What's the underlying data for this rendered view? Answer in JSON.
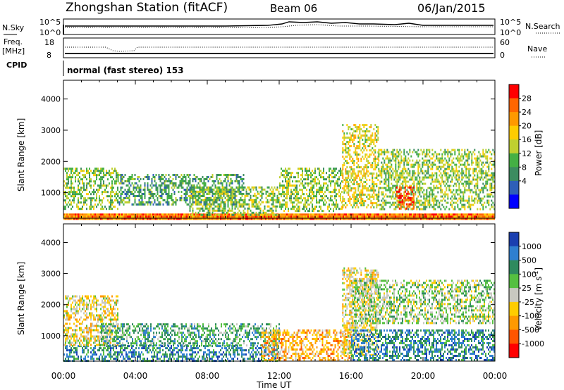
{
  "header": {
    "station": "Zhongshan Station (fitACF)",
    "beam": "Beam 06",
    "date": "06/Jan/2015"
  },
  "header_panels": {
    "nsky_label": "N.Sky",
    "nsky_left_ticks": [
      "10^5",
      "10^0"
    ],
    "nsky_right_ticks": [
      "10^5",
      "10^0"
    ],
    "nsearch_label": "N.Search",
    "freq_label_1": "Freq.",
    "freq_label_2": "[MHz]",
    "freq_ticks": [
      "18",
      "8"
    ],
    "nave_label": "Nave",
    "nave_ticks": [
      "60",
      "0"
    ],
    "cpid_label": "CPID",
    "cpid_text": "normal (fast stereo) 153"
  },
  "chart_data": [
    {
      "type": "heatmap",
      "quantity": "Power",
      "ylabel": "Slant Range [km]",
      "xlabel": "Time UT",
      "x_range_hours": [
        0,
        24
      ],
      "y_range_km": [
        180,
        4600
      ],
      "x_ticks": [
        "00:00",
        "04:00",
        "08:00",
        "12:00",
        "16:00",
        "20:00",
        "00:00"
      ],
      "y_ticks": [
        "1000",
        "2000",
        "3000",
        "4000"
      ],
      "colorbar_label": "Power [dB]",
      "colorbar_ticks": [
        "28",
        "24",
        "20",
        "16",
        "12",
        "8",
        "4"
      ],
      "colorbar_colors": [
        "#ff0000",
        "#ff6600",
        "#ff9900",
        "#ffcc00",
        "#bfd030",
        "#44b044",
        "#3c8c60",
        "#2e5fb8",
        "#0000ff"
      ],
      "echo_regions_approx": [
        {
          "t_start_h": 0.0,
          "t_end_h": 24.0,
          "r_min_km": 180,
          "r_max_km": 330,
          "level_db": 24
        },
        {
          "t_start_h": 0.0,
          "t_end_h": 3.0,
          "r_min_km": 500,
          "r_max_km": 1800,
          "level_db": 12
        },
        {
          "t_start_h": 3.0,
          "t_end_h": 10.0,
          "r_min_km": 600,
          "r_max_km": 1600,
          "level_db": 10
        },
        {
          "t_start_h": 7.0,
          "t_end_h": 12.0,
          "r_min_km": 300,
          "r_max_km": 1200,
          "level_db": 14
        },
        {
          "t_start_h": 12.0,
          "t_end_h": 15.5,
          "r_min_km": 400,
          "r_max_km": 1800,
          "level_db": 12
        },
        {
          "t_start_h": 15.5,
          "t_end_h": 17.5,
          "r_min_km": 500,
          "r_max_km": 3200,
          "level_db": 16
        },
        {
          "t_start_h": 17.5,
          "t_end_h": 24.0,
          "r_min_km": 500,
          "r_max_km": 2400,
          "level_db": 14
        },
        {
          "t_start_h": 18.5,
          "t_end_h": 19.5,
          "r_min_km": 500,
          "r_max_km": 1200,
          "level_db": 26
        }
      ]
    },
    {
      "type": "heatmap",
      "quantity": "Velocity",
      "ylabel": "Slant Range [km]",
      "xlabel": "Time UT",
      "x_range_hours": [
        0,
        24
      ],
      "y_range_km": [
        180,
        4600
      ],
      "x_ticks": [
        "00:00",
        "04:00",
        "08:00",
        "12:00",
        "16:00",
        "20:00",
        "00:00"
      ],
      "y_ticks": [
        "1000",
        "2000",
        "3000",
        "4000"
      ],
      "colorbar_label": "Velocity",
      "colorbar_unit": "[m s",
      "colorbar_unit_exp": "-1",
      "colorbar_unit_close": "]",
      "colorbar_ticks": [
        "1000",
        "500",
        "100",
        "25",
        "-25",
        "-100",
        "-500",
        "-1000"
      ],
      "colorbar_colors": [
        "#1a3fb0",
        "#2f7fd0",
        "#2e8a5e",
        "#55c040",
        "#c8c8c0",
        "#ffcc00",
        "#ff9900",
        "#ff5500",
        "#ff0000"
      ],
      "echo_regions_approx": [
        {
          "t_start_h": 0.0,
          "t_end_h": 12.0,
          "r_min_km": 180,
          "r_max_km": 700,
          "velocity_ms": 100
        },
        {
          "t_start_h": 0.0,
          "t_end_h": 3.0,
          "r_min_km": 700,
          "r_max_km": 2300,
          "velocity_ms": -100
        },
        {
          "t_start_h": 2.0,
          "t_end_h": 12.0,
          "r_min_km": 700,
          "r_max_km": 1400,
          "velocity_ms": 25
        },
        {
          "t_start_h": 11.0,
          "t_end_h": 16.0,
          "r_min_km": 200,
          "r_max_km": 1200,
          "velocity_ms": -300
        },
        {
          "t_start_h": 15.5,
          "t_end_h": 17.5,
          "r_min_km": 400,
          "r_max_km": 3200,
          "velocity_ms": -100
        },
        {
          "t_start_h": 16.0,
          "t_end_h": 24.0,
          "r_min_km": 1400,
          "r_max_km": 2800,
          "velocity_ms": -20
        },
        {
          "t_start_h": 16.0,
          "t_end_h": 24.0,
          "r_min_km": 200,
          "r_max_km": 1200,
          "velocity_ms": 150
        }
      ]
    }
  ]
}
